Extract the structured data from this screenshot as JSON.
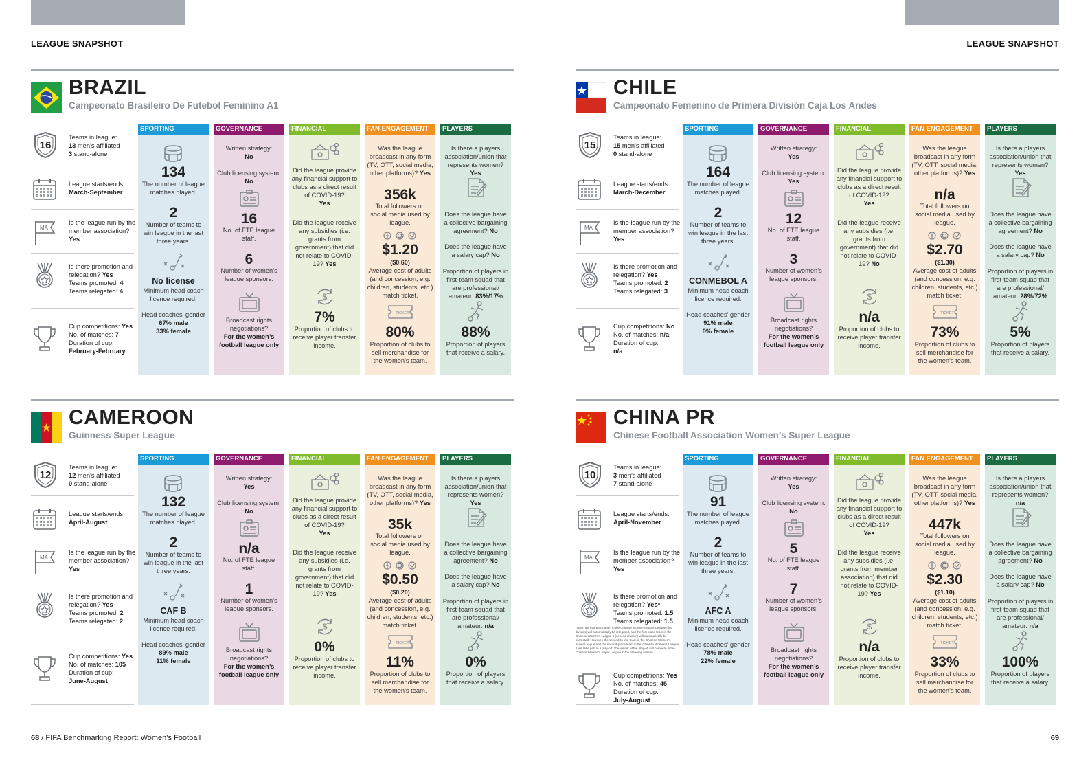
{
  "header": {
    "left": "LEAGUE SNAPSHOT",
    "right": "LEAGUE SNAPSHOT"
  },
  "footer": {
    "page_left": "68",
    "title": " / FIFA Benchmarking Report: Women’s Football",
    "page_right": "69"
  },
  "labels": {
    "sporting": "SPORTING",
    "governance": "GOVERNANCE",
    "financial": "FINANCIAL",
    "fan": "FAN ENGAGEMENT",
    "players": "PLAYERS",
    "teams_in_league": "Teams in league:",
    "mens_affiliated": " men’s affiliated",
    "stand_alone": " stand-alone",
    "starts_ends": "League starts/ends:",
    "run_by_ma": "Is the league run by the member association?",
    "promotion": "Is there promotion and relegation?",
    "teams_promoted": "Teams promoted:",
    "teams_relegated": "Teams relegated:",
    "cup_competitions": "Cup competitions:",
    "no_matches": "No. of matches:",
    "duration_cup": "Duration of cup:",
    "matches_played": "The number of league matches played.",
    "teams_won": "Number of teams to win league in the last three years.",
    "min_coach": "Minimum head coach licence required.",
    "coach_gender": "Head coaches’ gender",
    "male": " male",
    "female": " female",
    "written_strategy": "Written strategy:",
    "club_licensing": "Club licensing system:",
    "fte_staff": "No. of FTE league staff.",
    "sponsors": "Number of women’s league sponsors.",
    "broadcast_neg": "Broadcast rights negotiations?",
    "fin_support": "Did the league provide any financial support to clubs as a direct result of COVID-19?",
    "fin_subsidies": "Did the league receive any subsidies (i.e. grants from government) that did not relate to COVID-19?",
    "fin_subsidies_china": "Did the league receive any subsidies (i.e. grants from member association) that did not relate to COVID-19?",
    "transfer_income": "Proportion of clubs to receive player transfer income.",
    "broadcast_q": "Was the league broadcast in any form (TV, OTT, social media, other platforms)?",
    "followers": "Total followers on social media used by league.",
    "ticket_cost": "Average cost of adults (and concession, e.g. children, students, etc.) match ticket.",
    "merch": "Proportion of clubs to sell merchandise for the women’s team.",
    "players_union": "Is there a players association/union that represents women?",
    "cba": "Does the league have a collective bargaining agreement?",
    "salary_cap": "Does the league have a salary cap?",
    "pro_amateur": "Proportion of players in first-team squad that are professional/ amateur:",
    "salary": "Proportion of players that receive a salary.",
    "ma_badge": "MA",
    "ticket_badge": "TICKET",
    "dollar": "$"
  },
  "colors": {
    "sporting": "#1b9bd7",
    "governance": "#8e1b6e",
    "financial": "#7fbb2a",
    "fan": "#f0901e",
    "players": "#1b6b43",
    "sporting_bg": "#dce9f1",
    "governance_bg": "#ead9e4",
    "financial_bg": "#e9f1dc",
    "fan_bg": "#fbe9d8",
    "players_bg": "#d8e9df"
  },
  "countries": [
    {
      "name": "BRAZIL",
      "league": "Campeonato Brasileiro De Futebol Feminino A1",
      "flag": "brazil",
      "teams": "16",
      "mens": "13",
      "standalone": "3",
      "season": "March-September",
      "run_by_ma": "Yes",
      "promotion": "Yes",
      "promoted": "4",
      "relegated": "4",
      "cup": "Yes",
      "cup_matches": "7",
      "cup_duration": "February-February",
      "matches": "134",
      "winners": "2",
      "licence": "No license",
      "male": "67%",
      "female": "33%",
      "strategy": "No",
      "licensing": "No",
      "staff": "16",
      "sponsors": "6",
      "broadcast_rights": "For the women’s football league only",
      "fin_support": "Yes",
      "subsidies": "Yes",
      "transfer": "7%",
      "broadcast": "Yes",
      "followers": "356k",
      "ticket": "$1.20",
      "ticket_conc": "($0.60)",
      "merch": "80%",
      "union": "Yes",
      "cba": "No",
      "cap": "No",
      "pro_amateur": "83%/17%",
      "salary": "88%"
    },
    {
      "name": "CHILE",
      "league": "Campeonato Femenino de Primera División Caja Los Andes",
      "flag": "chile",
      "teams": "15",
      "mens": "15",
      "standalone": "0",
      "season": "March-December",
      "run_by_ma": "Yes",
      "promotion": "Yes",
      "promoted": "2",
      "relegated": "3",
      "cup": "No",
      "cup_matches": "n/a",
      "cup_duration": "n/a",
      "matches": "164",
      "winners": "2",
      "licence": "CONMEBOL A",
      "male": "91%",
      "female": "9%",
      "strategy": "Yes",
      "licensing": "Yes",
      "staff": "12",
      "sponsors": "3",
      "broadcast_rights": "For the women’s football league only",
      "fin_support": "Yes",
      "subsidies": "No",
      "transfer": "n/a",
      "broadcast": "Yes",
      "followers": "n/a",
      "ticket": "$2.70",
      "ticket_conc": "($1.30)",
      "merch": "73%",
      "union": "Yes",
      "cba": "No",
      "cap": "No",
      "pro_amateur": "28%/72%",
      "salary": "5%"
    },
    {
      "name": "CAMEROON",
      "league": "Guinness Super League",
      "flag": "cameroon",
      "teams": "12",
      "mens": "12",
      "standalone": "0",
      "season": "April-August",
      "run_by_ma": "Yes",
      "promotion": "Yes",
      "promoted": "2",
      "relegated": "2",
      "cup": "Yes",
      "cup_matches": "105",
      "cup_duration": "June-August",
      "matches": "132",
      "winners": "2",
      "licence": "CAF B",
      "male": "89%",
      "female": "11%",
      "strategy": "Yes",
      "licensing": "No",
      "staff": "n/a",
      "sponsors": "1",
      "broadcast_rights": "For the women’s football league only",
      "fin_support": "Yes",
      "subsidies": "Yes",
      "transfer": "0%",
      "broadcast": "Yes",
      "followers": "35k",
      "ticket": "$0.50",
      "ticket_conc": "($0.20)",
      "merch": "11%",
      "union": "Yes",
      "cba": "No",
      "cap": "No",
      "pro_amateur": "n/a",
      "salary": "0%"
    },
    {
      "name": "CHINA PR",
      "league": "Chinese Football Association Women’s Super League",
      "flag": "china",
      "teams": "10",
      "mens": "3",
      "standalone": "7",
      "season": "April-November",
      "run_by_ma": "Yes",
      "promotion": "Yes*",
      "promoted": "1.5",
      "relegated": "1.5",
      "note": "*Note: the last-place team in the Chinese Women's Super League (first division) will automatically be relegated, and the first-place team in the Chinese Women's League 1 (second division) will automatically be promoted. However, the second-to-last team in the Chinese Women's Super League and the second-place team in the Chinese Women's League 1 will take part in a play-off. The winner of the play-off will compete in the Chinese Women's Super League in the following season.",
      "cup": "Yes",
      "cup_matches": "45",
      "cup_duration": "July-August",
      "matches": "91",
      "winners": "2",
      "licence": "AFC A",
      "male": "78%",
      "female": "22%",
      "strategy": "Yes",
      "licensing": "No",
      "staff": "5",
      "sponsors": "7",
      "broadcast_rights": "For the women’s football league only",
      "fin_support": "Yes",
      "subsidies": "Yes",
      "transfer": "n/a",
      "broadcast": "Yes",
      "followers": "447k",
      "ticket": "$2.30",
      "ticket_conc": "($1.10)",
      "merch": "33%",
      "union": "n/a",
      "cba": "No",
      "cap": "No",
      "pro_amateur": "n/a",
      "salary": "100%"
    }
  ]
}
